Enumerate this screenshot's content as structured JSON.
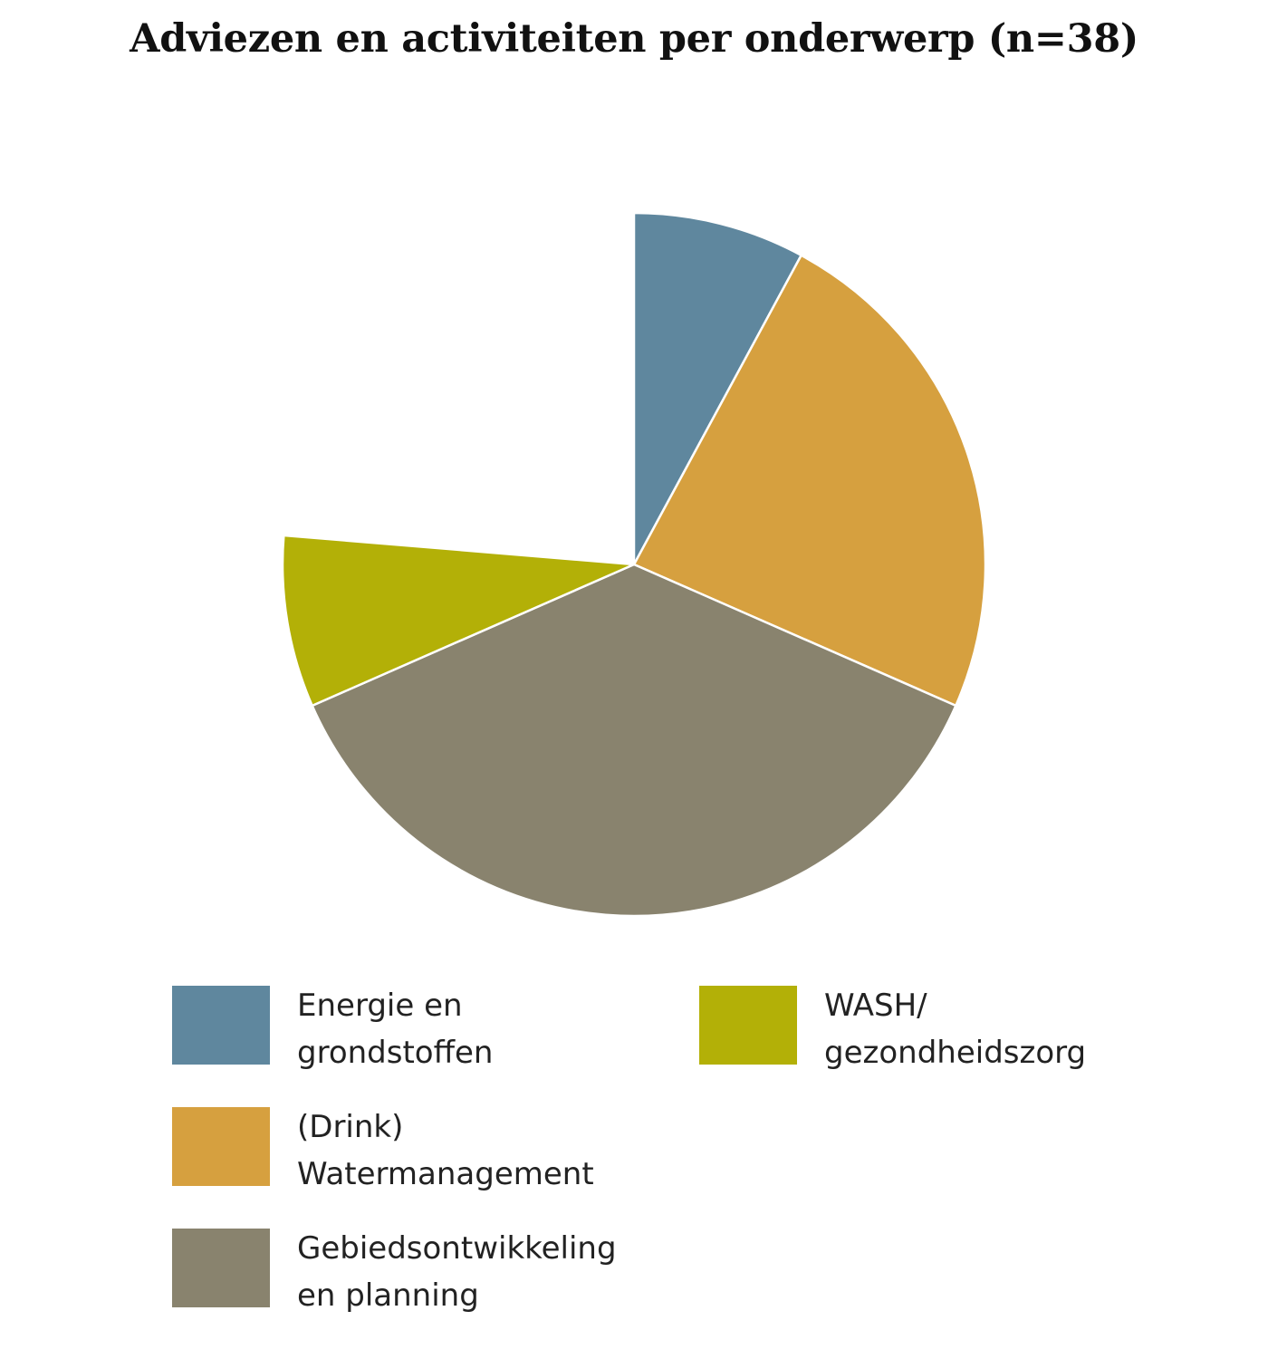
{
  "chart_data": {
    "type": "pie",
    "title": "Adviezen en activiteiten per onderwerp (n=38)",
    "start_angle_deg": 0,
    "direction": "clockwise",
    "slices": [
      {
        "label": "Energie en grondstoffen",
        "label_lines": [
          "Energie en",
          "grondstoffen"
        ],
        "value": 3,
        "color": "#5f879e"
      },
      {
        "label": "(Drink) Watermanagement",
        "label_lines": [
          "(Drink)",
          "Watermanagement"
        ],
        "value": 9,
        "color": "#d6a03f"
      },
      {
        "label": "Gebiedsontwikkeling en planning",
        "label_lines": [
          "Gebiedsontwikkeling",
          "en planning"
        ],
        "value": 14,
        "color": "#89836e"
      },
      {
        "label": "WASH/ gezondheidszorg",
        "label_lines": [
          "WASH/",
          "gezondheidszorg"
        ],
        "value": 3,
        "color": "#b3b007"
      }
    ],
    "empty_value": 9,
    "legend_placement": "bottom"
  }
}
